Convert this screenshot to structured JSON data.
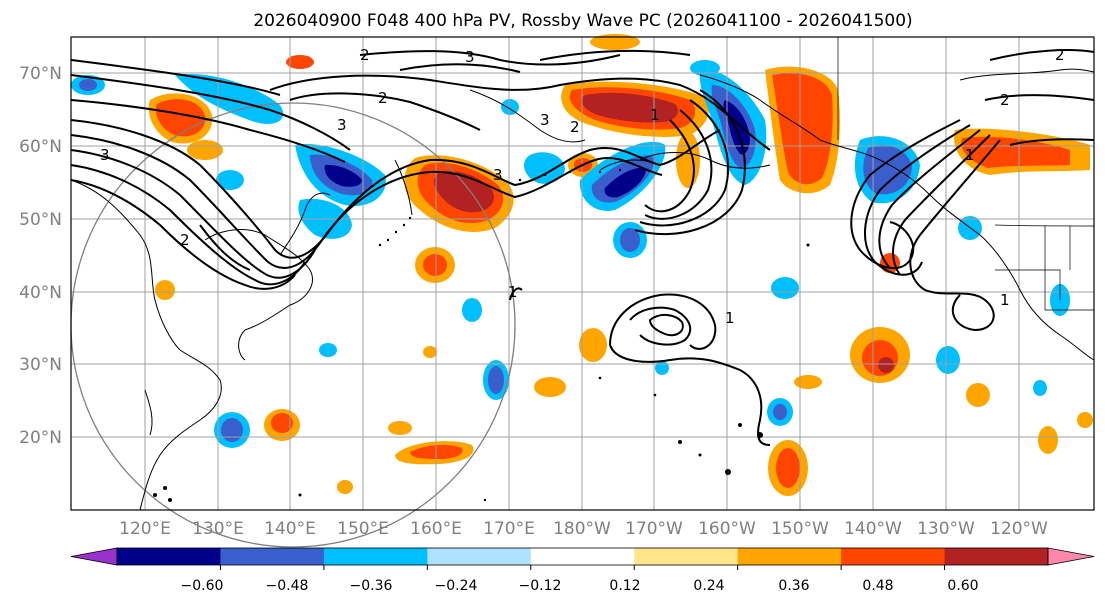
{
  "title": "2026040900 F048 400 hPa PV, Rossby Wave PC (2026041100 - 2026041500)",
  "lat_labels": [
    "70°N",
    "60°N",
    "50°N",
    "40°N",
    "30°N",
    "20°N"
  ],
  "lon_labels": [
    "120°E",
    "130°E",
    "140°E",
    "150°E",
    "160°E",
    "170°E",
    "180°W",
    "170°W",
    "160°W",
    "150°W",
    "140°W",
    "130°W",
    "120°W"
  ],
  "colorbar": {
    "ticks": [
      "−0.60",
      "−0.48",
      "−0.36",
      "−0.24",
      "−0.12",
      "0.12",
      "0.24",
      "0.36",
      "0.48",
      "0.60"
    ],
    "colors": [
      "#9932cc",
      "#00008b",
      "#3a5fcd",
      "#00bfff",
      "#b0e0ff",
      "#ffffff",
      "#ffe68a",
      "#ffa500",
      "#ff4500",
      "#b22222",
      "#ff88aa"
    ]
  },
  "contour_labels": [
    "3",
    "2",
    "3",
    "2",
    "3",
    "2",
    "3",
    "1",
    "3",
    "2",
    "1",
    "1",
    "1",
    "1",
    "2",
    "2"
  ],
  "map_extent": {
    "lon_min": 110,
    "lon_max": 245,
    "lat_min": 10,
    "lat_max": 75
  },
  "colors": {
    "gridline": "#a0a0a0",
    "coast": "#000000",
    "contour": "#000000",
    "range_ring": "#808080"
  }
}
